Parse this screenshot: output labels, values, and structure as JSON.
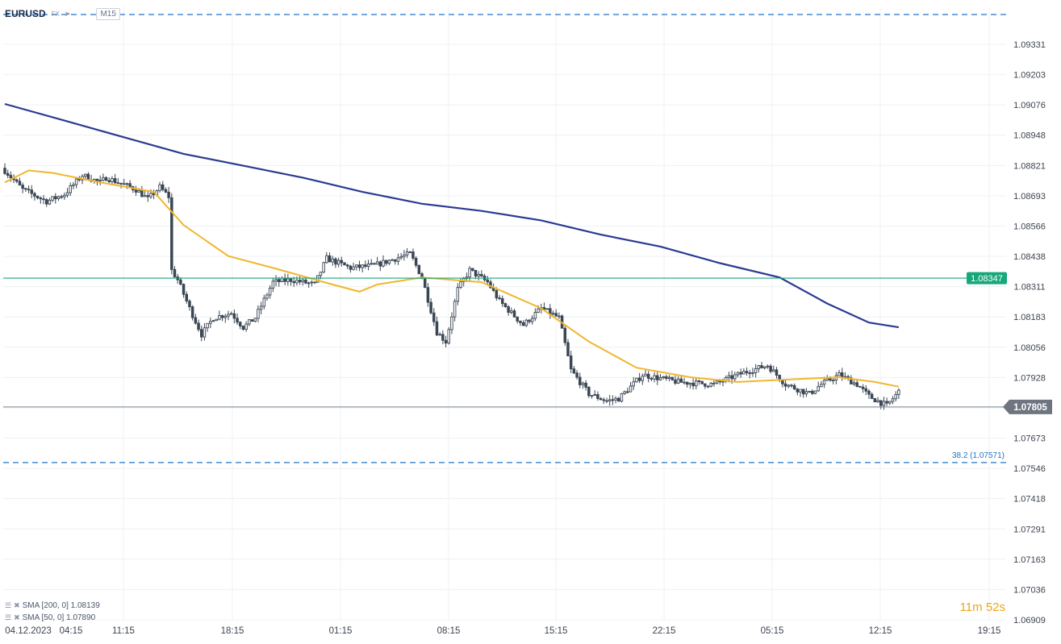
{
  "header": {
    "symbol": "EURUSD",
    "source": "FX",
    "timeframe": "M15"
  },
  "legend": {
    "sma200": "SMA [200, 0] 1.08139",
    "sma50": "SMA [50, 0] 1.07890"
  },
  "timer": {
    "minutes": "11",
    "m_unit": "m",
    "seconds": "52",
    "s_unit": "s"
  },
  "colors": {
    "sma200": "#2a3a92",
    "sma50": "#f0b62e",
    "candle": "#3b4654",
    "hline_green": "#17a77a",
    "hline_gray": "#7c8591",
    "fib": "#1f74c9",
    "grid": "#eef0f3",
    "price_label_gray": "#6e7480"
  },
  "chart_data": {
    "type": "candlestick",
    "symbol": "EURUSD",
    "timeframe": "M15",
    "y_ticks": [
      "1.09331",
      "1.09203",
      "1.09076",
      "1.08948",
      "1.08821",
      "1.08693",
      "1.08566",
      "1.08438",
      "1.08311",
      "1.08183",
      "1.08056",
      "1.07928",
      "1.07805",
      "1.07673",
      "1.07546",
      "1.07418",
      "1.07291",
      "1.07163",
      "1.07036",
      "1.06909"
    ],
    "x_ticks": [
      "04.12.2023",
      "04:15",
      "11:15",
      "18:15",
      "01:15",
      "08:15",
      "15:15",
      "22:15",
      "05:15",
      "12:15",
      "19:15"
    ],
    "ylim": [
      1.06909,
      1.09331
    ],
    "current_price": "1.07805",
    "horizontal_line_price": "1.08347",
    "fib_label": "38.2 (1.07571)",
    "fib_level": 1.07571,
    "top_dashed_level": 1.0946,
    "series": [
      {
        "name": "SMA [200, 0]",
        "last": 1.08139,
        "points": [
          [
            0,
            1.0908
          ],
          [
            20,
            1.0901
          ],
          [
            40,
            1.0894
          ],
          [
            60,
            1.0887
          ],
          [
            80,
            1.0882
          ],
          [
            100,
            1.0877
          ],
          [
            120,
            1.0871
          ],
          [
            140,
            1.0866
          ],
          [
            160,
            1.0863
          ],
          [
            180,
            1.0859
          ],
          [
            200,
            1.0853
          ],
          [
            220,
            1.0848
          ],
          [
            240,
            1.0841
          ],
          [
            260,
            1.0835
          ],
          [
            276,
            1.0824
          ],
          [
            290,
            1.0816
          ],
          [
            300,
            1.0814
          ]
        ]
      },
      {
        "name": "SMA [50, 0]",
        "last": 1.0789,
        "points": [
          [
            0,
            1.0875
          ],
          [
            8,
            1.088
          ],
          [
            16,
            1.0879
          ],
          [
            32,
            1.0875
          ],
          [
            50,
            1.0871
          ],
          [
            60,
            1.0857
          ],
          [
            75,
            1.0844
          ],
          [
            90,
            1.0839
          ],
          [
            110,
            1.0832
          ],
          [
            119,
            1.0829
          ],
          [
            125,
            1.0832
          ],
          [
            140,
            1.0835
          ],
          [
            160,
            1.0833
          ],
          [
            180,
            1.0822
          ],
          [
            196,
            1.0808
          ],
          [
            212,
            1.0797
          ],
          [
            230,
            1.0793
          ],
          [
            246,
            1.0791
          ],
          [
            262,
            1.0792
          ],
          [
            280,
            1.0793
          ],
          [
            292,
            1.0791
          ],
          [
            300,
            1.0789
          ]
        ]
      }
    ],
    "candle_path": [
      [
        0,
        1.088
      ],
      [
        6,
        1.0872
      ],
      [
        14,
        1.0867
      ],
      [
        20,
        1.087
      ],
      [
        26,
        1.0878
      ],
      [
        32,
        1.0875
      ],
      [
        34,
        1.0877
      ],
      [
        44,
        1.0872
      ],
      [
        48,
        1.0868
      ],
      [
        52,
        1.0873
      ],
      [
        55,
        1.0869
      ],
      [
        56,
        1.0838
      ],
      [
        58,
        1.0834
      ],
      [
        62,
        1.0822
      ],
      [
        66,
        1.0811
      ],
      [
        70,
        1.0818
      ],
      [
        76,
        1.082
      ],
      [
        80,
        1.0814
      ],
      [
        84,
        1.0818
      ],
      [
        90,
        1.0833
      ],
      [
        96,
        1.0834
      ],
      [
        100,
        1.0833
      ],
      [
        104,
        1.0832
      ],
      [
        108,
        1.0843
      ],
      [
        116,
        1.0839
      ],
      [
        124,
        1.084
      ],
      [
        136,
        1.0845
      ],
      [
        140,
        1.0835
      ],
      [
        145,
        1.0812
      ],
      [
        148,
        1.0808
      ],
      [
        152,
        1.083
      ],
      [
        156,
        1.0838
      ],
      [
        162,
        1.0833
      ],
      [
        166,
        1.0825
      ],
      [
        174,
        1.0815
      ],
      [
        180,
        1.0822
      ],
      [
        186,
        1.0818
      ],
      [
        190,
        1.0796
      ],
      [
        196,
        1.0786
      ],
      [
        202,
        1.0783
      ],
      [
        206,
        1.0784
      ],
      [
        214,
        1.0794
      ],
      [
        226,
        1.0791
      ],
      [
        238,
        1.079
      ],
      [
        248,
        1.0795
      ],
      [
        256,
        1.0798
      ],
      [
        262,
        1.079
      ],
      [
        270,
        1.0786
      ],
      [
        274,
        1.079
      ],
      [
        280,
        1.0794
      ],
      [
        286,
        1.079
      ],
      [
        290,
        1.0785
      ],
      [
        296,
        1.0781
      ],
      [
        300,
        1.0787
      ]
    ]
  }
}
